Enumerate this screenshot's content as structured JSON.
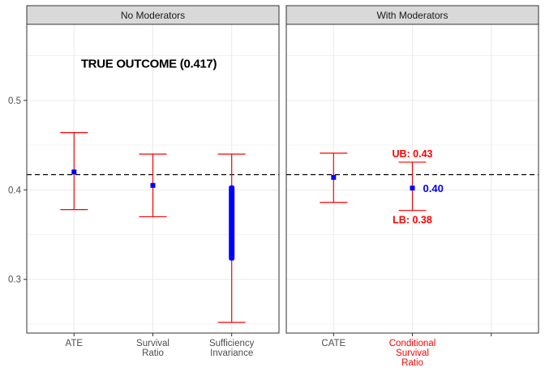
{
  "chart_data": {
    "type": "errorbar",
    "ylim": [
      0.24,
      0.585
    ],
    "y_ticks": [
      0.3,
      0.4,
      0.5
    ],
    "y_tick_labels": [
      "0.3",
      "0.4",
      "0.5"
    ],
    "reference_line": {
      "value": 0.417,
      "style": "dashed"
    },
    "colors": {
      "point": "#0000ff",
      "errorbar": "#ff0000",
      "highlight_label": "#ff0000",
      "value_label": "#0000ff",
      "strip_bg": "#d9d9d9",
      "grid": "#ebebeb"
    },
    "panels": [
      {
        "strip": "No Moderators",
        "categories": [
          "ATE",
          "Survival\nRatio",
          "Sufficiency\nInvariance"
        ],
        "category_colors": [
          "#4d4d4d",
          "#4d4d4d",
          "#4d4d4d"
        ],
        "points": [
          {
            "category": 0,
            "estimate": 0.42,
            "lower": 0.378,
            "upper": 0.464
          },
          {
            "category": 1,
            "estimate": 0.405,
            "lower": 0.37,
            "upper": 0.44
          },
          {
            "category": 2,
            "estimate_range": [
              0.321,
              0.405
            ],
            "lower": 0.252,
            "upper": 0.44
          }
        ],
        "annotation": "TRUE OUTCOME (0.417)"
      },
      {
        "strip": "With Moderators",
        "categories": [
          "CATE",
          "Conditional\nSurvival\nRatio",
          ""
        ],
        "category_colors": [
          "#4d4d4d",
          "#ff0000",
          "#4d4d4d"
        ],
        "points": [
          {
            "category": 0,
            "estimate": 0.414,
            "lower": 0.386,
            "upper": 0.441
          },
          {
            "category": 1,
            "estimate": 0.402,
            "lower": 0.377,
            "upper": 0.431
          }
        ],
        "labels": {
          "upper": "UB: 0.43",
          "lower": "LB: 0.38",
          "estimate": "0.40"
        }
      }
    ]
  }
}
